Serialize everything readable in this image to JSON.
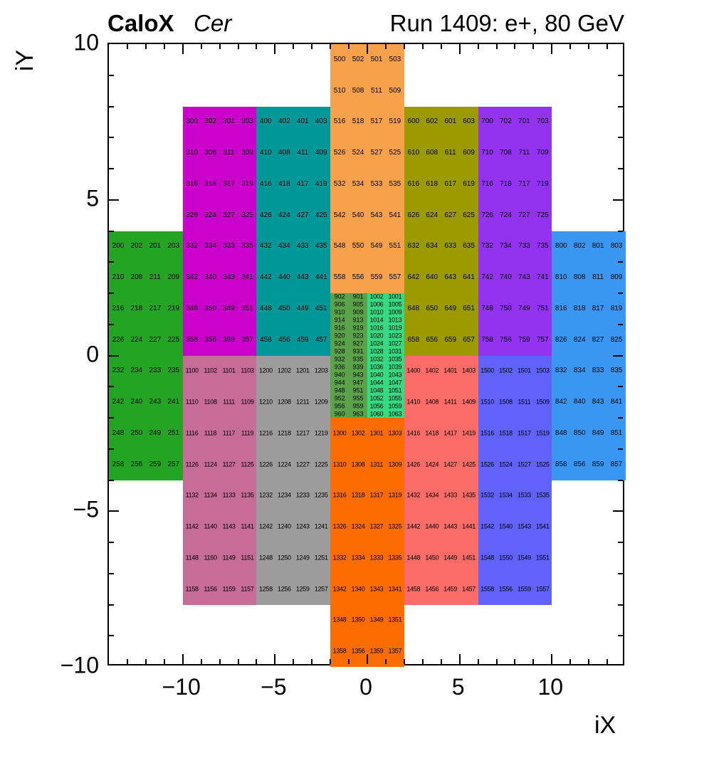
{
  "header": {
    "experiment": "CaloX",
    "detector": "Cer",
    "run_info": "Run 1409: e+, 80 GeV"
  },
  "chart_data": {
    "type": "heatmap",
    "title": "CaloX Cer",
    "subtitle": "Run 1409: e+, 80 GeV",
    "xlabel": "iX",
    "ylabel": "iY",
    "xlim": [
      -14,
      14
    ],
    "ylim": [
      -10,
      10
    ],
    "grid": false,
    "x_ticks": [
      {
        "v": -10,
        "label": "−10"
      },
      {
        "v": -5,
        "label": "−5"
      },
      {
        "v": 0,
        "label": "0"
      },
      {
        "v": 5,
        "label": "5"
      },
      {
        "v": 10,
        "label": "10"
      }
    ],
    "y_ticks": [
      {
        "v": 10,
        "label": "10"
      },
      {
        "v": 5,
        "label": "5"
      },
      {
        "v": 0,
        "label": "0"
      },
      {
        "v": -5,
        "label": "−5"
      },
      {
        "v": -10,
        "label": "−10"
      }
    ],
    "regions": [
      {
        "name": "green-200",
        "color": "#23A423",
        "x0": -14,
        "x1": -10,
        "y0": 4,
        "y1": -4,
        "rows": [
          [
            "200",
            "202",
            "201",
            "203"
          ],
          [
            "210",
            "208",
            "211",
            "209"
          ],
          [
            "216",
            "218",
            "217",
            "219"
          ],
          [
            "226",
            "224",
            "227",
            "225"
          ],
          [
            "232",
            "234",
            "233",
            "235"
          ],
          [
            "242",
            "240",
            "243",
            "241"
          ],
          [
            "248",
            "250",
            "249",
            "251"
          ],
          [
            "258",
            "256",
            "259",
            "257"
          ]
        ]
      },
      {
        "name": "magenta-300",
        "color": "#CC00CC",
        "x0": -10,
        "x1": -6,
        "y0": 8,
        "y1": 0,
        "rows": [
          [
            "300",
            "302",
            "301",
            "303"
          ],
          [
            "310",
            "308",
            "311",
            "309"
          ],
          [
            "316",
            "318",
            "317",
            "319"
          ],
          [
            "326",
            "324",
            "327",
            "325"
          ],
          [
            "332",
            "334",
            "333",
            "335"
          ],
          [
            "342",
            "340",
            "343",
            "341"
          ],
          [
            "348",
            "350",
            "349",
            "351"
          ],
          [
            "358",
            "356",
            "359",
            "357"
          ]
        ]
      },
      {
        "name": "teal-400",
        "color": "#009799",
        "x0": -6,
        "x1": -2,
        "y0": 8,
        "y1": 0,
        "rows": [
          [
            "400",
            "402",
            "401",
            "403"
          ],
          [
            "410",
            "408",
            "411",
            "409"
          ],
          [
            "416",
            "418",
            "417",
            "419"
          ],
          [
            "426",
            "424",
            "427",
            "425"
          ],
          [
            "432",
            "434",
            "433",
            "435"
          ],
          [
            "442",
            "440",
            "443",
            "441"
          ],
          [
            "448",
            "450",
            "449",
            "451"
          ],
          [
            "458",
            "456",
            "459",
            "457"
          ]
        ]
      },
      {
        "name": "orange-500",
        "color": "#F7A24B",
        "x0": -2,
        "x1": 2,
        "y0": 10,
        "y1": 2,
        "rows": [
          [
            "500",
            "502",
            "501",
            "503"
          ],
          [
            "510",
            "508",
            "511",
            "509"
          ],
          [
            "516",
            "518",
            "517",
            "519"
          ],
          [
            "526",
            "524",
            "527",
            "525"
          ],
          [
            "532",
            "534",
            "533",
            "535"
          ],
          [
            "542",
            "540",
            "543",
            "541"
          ],
          [
            "548",
            "550",
            "549",
            "551"
          ],
          [
            "558",
            "556",
            "559",
            "557"
          ]
        ]
      },
      {
        "name": "olive-600",
        "color": "#9B9B00",
        "x0": 2,
        "x1": 6,
        "y0": 8,
        "y1": 0,
        "rows": [
          [
            "600",
            "602",
            "601",
            "603"
          ],
          [
            "610",
            "608",
            "611",
            "609"
          ],
          [
            "616",
            "618",
            "617",
            "619"
          ],
          [
            "626",
            "624",
            "627",
            "625"
          ],
          [
            "632",
            "634",
            "633",
            "635"
          ],
          [
            "642",
            "640",
            "643",
            "641"
          ],
          [
            "648",
            "650",
            "649",
            "651"
          ],
          [
            "658",
            "656",
            "659",
            "657"
          ]
        ]
      },
      {
        "name": "purple-700",
        "color": "#9333F0",
        "x0": 6,
        "x1": 10,
        "y0": 8,
        "y1": 0,
        "rows": [
          [
            "700",
            "702",
            "701",
            "703"
          ],
          [
            "710",
            "708",
            "711",
            "709"
          ],
          [
            "716",
            "718",
            "717",
            "719"
          ],
          [
            "726",
            "724",
            "727",
            "725"
          ],
          [
            "732",
            "734",
            "733",
            "735"
          ],
          [
            "742",
            "740",
            "743",
            "741"
          ],
          [
            "748",
            "750",
            "749",
            "751"
          ],
          [
            "758",
            "756",
            "759",
            "757"
          ]
        ]
      },
      {
        "name": "blue-800",
        "color": "#3997F2",
        "x0": 10,
        "x1": 14,
        "y0": 4,
        "y1": -4,
        "rows": [
          [
            "800",
            "802",
            "801",
            "803"
          ],
          [
            "810",
            "808",
            "811",
            "809"
          ],
          [
            "816",
            "818",
            "817",
            "819"
          ],
          [
            "826",
            "824",
            "827",
            "825"
          ],
          [
            "832",
            "834",
            "833",
            "835"
          ],
          [
            "842",
            "840",
            "843",
            "841"
          ],
          [
            "848",
            "850",
            "849",
            "851"
          ],
          [
            "858",
            "856",
            "859",
            "857"
          ]
        ]
      },
      {
        "name": "dense-green-900",
        "color": "#5BA349",
        "x0": -2,
        "x1": 0,
        "y0": 2,
        "y1": -2,
        "rows": [
          [
            "902",
            "901"
          ],
          [
            "906",
            "905"
          ],
          [
            "910",
            "909"
          ],
          [
            "914",
            "913"
          ],
          [
            "916",
            "919"
          ],
          [
            "920",
            "923"
          ],
          [
            "924",
            "927"
          ],
          [
            "928",
            "931"
          ],
          [
            "932",
            "935"
          ],
          [
            "936",
            "939"
          ],
          [
            "940",
            "943"
          ],
          [
            "944",
            "947"
          ],
          [
            "948",
            "951"
          ],
          [
            "952",
            "955"
          ],
          [
            "956",
            "959"
          ],
          [
            "960",
            "963"
          ]
        ]
      },
      {
        "name": "dense-spring-1000",
        "color": "#35DA83",
        "x0": 0,
        "x1": 2,
        "y0": 2,
        "y1": -2,
        "rows": [
          [
            "1002",
            "1001"
          ],
          [
            "1006",
            "1005"
          ],
          [
            "1010",
            "1009"
          ],
          [
            "1014",
            "1013"
          ],
          [
            "1016",
            "1019"
          ],
          [
            "1020",
            "1023"
          ],
          [
            "1024",
            "1027"
          ],
          [
            "1028",
            "1031"
          ],
          [
            "1032",
            "1035"
          ],
          [
            "1036",
            "1039"
          ],
          [
            "1040",
            "1043"
          ],
          [
            "1044",
            "1047"
          ],
          [
            "1048",
            "1051"
          ],
          [
            "1052",
            "1055"
          ],
          [
            "1056",
            "1059"
          ],
          [
            "1060",
            "1063"
          ]
        ]
      },
      {
        "name": "pink-1100",
        "color": "#C66C96",
        "x0": -10,
        "x1": -6,
        "y0": 0,
        "y1": -8,
        "rows": [
          [
            "1100",
            "1102",
            "1101",
            "1103"
          ],
          [
            "1110",
            "1108",
            "1111",
            "1109"
          ],
          [
            "1116",
            "1118",
            "1117",
            "1119"
          ],
          [
            "1126",
            "1124",
            "1127",
            "1125"
          ],
          [
            "1132",
            "1134",
            "1133",
            "1135"
          ],
          [
            "1142",
            "1140",
            "1143",
            "1141"
          ],
          [
            "1148",
            "1150",
            "1149",
            "1151"
          ],
          [
            "1158",
            "1156",
            "1159",
            "1157"
          ]
        ]
      },
      {
        "name": "gray-1200",
        "color": "#9C9C9C",
        "x0": -6,
        "x1": -2,
        "y0": 0,
        "y1": -8,
        "rows": [
          [
            "1200",
            "1202",
            "1201",
            "1203"
          ],
          [
            "1210",
            "1208",
            "1211",
            "1209"
          ],
          [
            "1216",
            "1218",
            "1217",
            "1219"
          ],
          [
            "1226",
            "1224",
            "1227",
            "1225"
          ],
          [
            "1232",
            "1234",
            "1233",
            "1235"
          ],
          [
            "1242",
            "1240",
            "1243",
            "1241"
          ],
          [
            "1248",
            "1250",
            "1249",
            "1251"
          ],
          [
            "1258",
            "1256",
            "1259",
            "1257"
          ]
        ]
      },
      {
        "name": "orange-1300",
        "color": "#FC6C00",
        "x0": -2,
        "x1": 2,
        "y0": -2,
        "y1": -10,
        "rows": [
          [
            "1300",
            "1302",
            "1301",
            "1303"
          ],
          [
            "1310",
            "1308",
            "1311",
            "1309"
          ],
          [
            "1316",
            "1318",
            "1317",
            "1319"
          ],
          [
            "1326",
            "1324",
            "1327",
            "1325"
          ],
          [
            "1332",
            "1334",
            "1333",
            "1335"
          ],
          [
            "1342",
            "1340",
            "1343",
            "1341"
          ],
          [
            "1348",
            "1350",
            "1349",
            "1351"
          ],
          [
            "1358",
            "1356",
            "1359",
            "1357"
          ]
        ]
      },
      {
        "name": "red-1400",
        "color": "#FB6C68",
        "x0": 2,
        "x1": 6,
        "y0": 0,
        "y1": -8,
        "rows": [
          [
            "1400",
            "1402",
            "1401",
            "1403"
          ],
          [
            "1410",
            "1408",
            "1411",
            "1409"
          ],
          [
            "1416",
            "1418",
            "1417",
            "1419"
          ],
          [
            "1426",
            "1424",
            "1427",
            "1425"
          ],
          [
            "1432",
            "1434",
            "1433",
            "1435"
          ],
          [
            "1442",
            "1440",
            "1443",
            "1441"
          ],
          [
            "1448",
            "1450",
            "1449",
            "1451"
          ],
          [
            "1458",
            "1456",
            "1459",
            "1457"
          ]
        ]
      },
      {
        "name": "blue-1500",
        "color": "#6063FB",
        "x0": 6,
        "x1": 10,
        "y0": 0,
        "y1": -8,
        "rows": [
          [
            "1500",
            "1502",
            "1501",
            "1503"
          ],
          [
            "1510",
            "1508",
            "1511",
            "1509"
          ],
          [
            "1516",
            "1518",
            "1517",
            "1519"
          ],
          [
            "1526",
            "1524",
            "1527",
            "1525"
          ],
          [
            "1532",
            "1534",
            "1533",
            "1535"
          ],
          [
            "1542",
            "1540",
            "1543",
            "1541"
          ],
          [
            "1548",
            "1550",
            "1549",
            "1551"
          ],
          [
            "1558",
            "1556",
            "1559",
            "1557"
          ]
        ]
      }
    ]
  }
}
